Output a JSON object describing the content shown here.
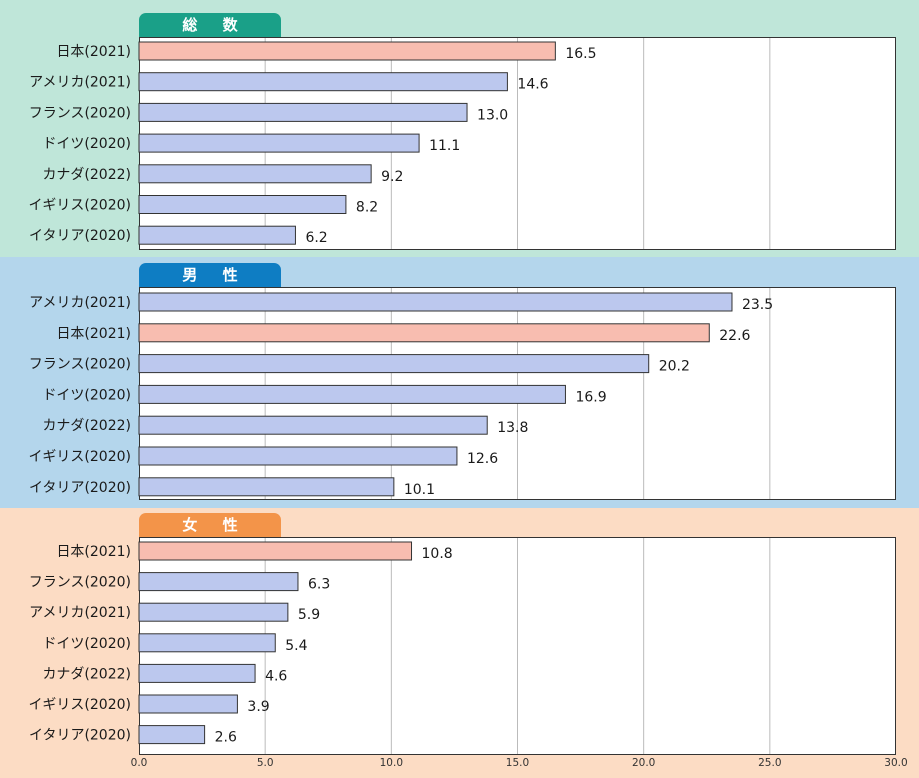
{
  "chart_data": [
    {
      "type": "bar",
      "orientation": "horizontal",
      "title": "総 数",
      "categories": [
        "日本(2021)",
        "アメリカ(2021)",
        "フランス(2020)",
        "ドイツ(2020)",
        "カナダ(2022)",
        "イギリス(2020)",
        "イタリア(2020)"
      ],
      "values": [
        16.5,
        14.6,
        13.0,
        11.1,
        9.2,
        8.2,
        6.2
      ],
      "value_labels": [
        "16.5",
        "14.6",
        "13.0",
        "11.1",
        "9.2",
        "8.2",
        "6.2"
      ],
      "highlight_index": 0,
      "xlim": [
        0,
        30
      ]
    },
    {
      "type": "bar",
      "orientation": "horizontal",
      "title": "男 性",
      "categories": [
        "アメリカ(2021)",
        "日本(2021)",
        "フランス(2020)",
        "ドイツ(2020)",
        "カナダ(2022)",
        "イギリス(2020)",
        "イタリア(2020)"
      ],
      "values": [
        23.5,
        22.6,
        20.2,
        16.9,
        13.8,
        12.6,
        10.1
      ],
      "value_labels": [
        "23.5",
        "22.6",
        "20.2",
        "16.9",
        "13.8",
        "12.6",
        "10.1"
      ],
      "highlight_index": 1,
      "xlim": [
        0,
        30
      ]
    },
    {
      "type": "bar",
      "orientation": "horizontal",
      "title": "女 性",
      "categories": [
        "日本(2021)",
        "フランス(2020)",
        "アメリカ(2021)",
        "ドイツ(2020)",
        "カナダ(2022)",
        "イギリス(2020)",
        "イタリア(2020)"
      ],
      "values": [
        10.8,
        6.3,
        5.9,
        5.4,
        4.6,
        3.9,
        2.6
      ],
      "value_labels": [
        "10.8",
        "6.3",
        "5.9",
        "5.4",
        "4.6",
        "3.9",
        "2.6"
      ],
      "highlight_index": 0,
      "xlim": [
        0,
        30
      ]
    }
  ],
  "x_axis": {
    "ticks": [
      0,
      5,
      10,
      15,
      20,
      25,
      30
    ],
    "tick_labels": [
      "0.0",
      "5.0",
      "10.0",
      "15.0",
      "20.0",
      "25.0",
      "30.0"
    ]
  },
  "colors": {
    "highlight_bar": "#F8BDB0",
    "normal_bar": "#BCC8EE",
    "bar_border": "#333333",
    "panel_bg": [
      "#BFE6D9",
      "#B4D6EC",
      "#FCDCC4"
    ],
    "tab_bg": [
      "#1AA088",
      "#0E7DC3",
      "#F39449"
    ],
    "grid": "#bbbbbb"
  }
}
